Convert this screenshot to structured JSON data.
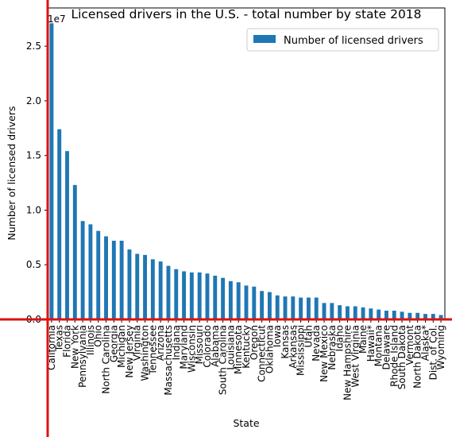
{
  "chart_data": {
    "type": "bar",
    "title": "Licensed drivers in the U.S. - total number by state 2018",
    "xlabel": "State",
    "ylabel": "Number of licensed drivers",
    "y_scale_label": "1e7",
    "y_multiplier": 10000000,
    "ylim": [
      0,
      2.85
    ],
    "yticks": [
      0.0,
      0.5,
      1.0,
      1.5,
      2.0,
      2.5
    ],
    "ytick_labels": [
      "0.0",
      "0.5",
      "1.0",
      "1.5",
      "2.0",
      "2.5"
    ],
    "legend": {
      "position": "top-right",
      "entries": [
        "Number of licensed drivers"
      ]
    },
    "grid": false,
    "bar_color": "#1f77b4",
    "axis_overlay_color": "#dd1111",
    "categories": [
      "California",
      "Texas",
      "Florida",
      "New York",
      "Pennsylvania",
      "Illinois",
      "Ohio",
      "North Carolina",
      "Georgia",
      "Michigan",
      "New Jersey",
      "Virginia",
      "Washington",
      "Tennessee",
      "Arizona",
      "Massachusetts",
      "Indiana",
      "Maryland",
      "Wisconsin",
      "Missouri",
      "Colorado",
      "Alabama",
      "South Carolina",
      "Louisiana",
      "Minnesota",
      "Kentucky",
      "Oregon",
      "Connecticut",
      "Oklahoma",
      "Iowa",
      "Kansas",
      "Arkansas",
      "Mississippi",
      "Utah",
      "Nevada",
      "New Mexico",
      "Nebraska",
      "Idaho",
      "New Hampshire",
      "West Virginia",
      "Maine",
      "Hawaii*",
      "Montana",
      "Delaware",
      "Rhode Island",
      "South Dakota",
      "Vermont",
      "North Dakota",
      "Alaska*",
      "Dist. of Col.",
      "Wyoming"
    ],
    "values": [
      2.71,
      1.74,
      1.54,
      1.23,
      0.9,
      0.87,
      0.81,
      0.76,
      0.72,
      0.72,
      0.64,
      0.6,
      0.59,
      0.55,
      0.53,
      0.49,
      0.46,
      0.44,
      0.43,
      0.43,
      0.42,
      0.4,
      0.38,
      0.35,
      0.34,
      0.31,
      0.3,
      0.26,
      0.25,
      0.22,
      0.21,
      0.21,
      0.2,
      0.2,
      0.2,
      0.15,
      0.15,
      0.13,
      0.12,
      0.12,
      0.11,
      0.1,
      0.09,
      0.08,
      0.08,
      0.07,
      0.06,
      0.06,
      0.05,
      0.05,
      0.04
    ]
  }
}
